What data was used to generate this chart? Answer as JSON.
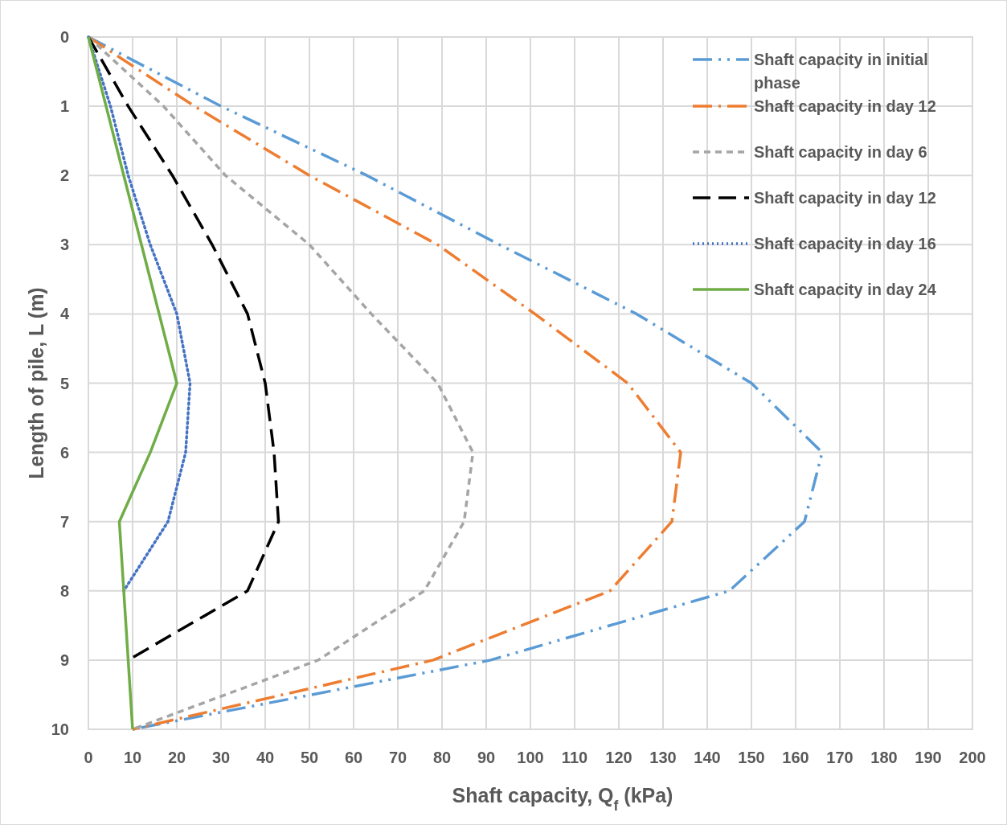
{
  "chart_data": {
    "type": "line",
    "xlabel": "Shaft capacity, Q$_{f}$ (kPa)",
    "ylabel": "Length of pile, L (m)",
    "xlim": [
      0,
      200
    ],
    "xticks": [
      0,
      10,
      20,
      30,
      40,
      50,
      60,
      70,
      80,
      90,
      100,
      110,
      120,
      130,
      140,
      150,
      160,
      170,
      180,
      190,
      200
    ],
    "ylim": [
      10,
      0
    ],
    "yticks": [
      0,
      1,
      2,
      3,
      4,
      5,
      6,
      7,
      8,
      9,
      10
    ],
    "grid": true,
    "legend": "top right",
    "marker": "none",
    "series": [
      {
        "name": "Shaft capacity in initial phase",
        "color": "#5b9bd5",
        "line_style": "dashed",
        "x": [
          0,
          30,
          63,
          93,
          124,
          150,
          166,
          162,
          145,
          91,
          10
        ],
        "values": [
          0,
          1,
          2,
          3,
          4,
          5,
          6,
          7,
          8,
          9,
          10
        ]
      },
      {
        "name": "Shaft capacity in day 12",
        "color": "#ed7d31",
        "line_style": "dashed",
        "x": [
          0,
          24,
          50,
          79,
          101,
          122,
          134,
          132,
          118,
          78,
          10
        ],
        "values": [
          0,
          1,
          2,
          3,
          4,
          5,
          6,
          7,
          8,
          9,
          10
        ]
      },
      {
        "name": "Shaft capacity in day 6",
        "color": "#a5a5a5",
        "line_style": "dashed",
        "x": [
          0,
          17,
          31,
          50,
          64,
          79,
          87,
          85,
          76,
          52,
          10
        ],
        "values": [
          0,
          1,
          2,
          3,
          4,
          5,
          6,
          7,
          8,
          9,
          10
        ]
      },
      {
        "name": "Shaft capacity in day 12",
        "color": "#000000",
        "line_style": "dashed",
        "x": [
          0,
          9,
          19,
          28,
          36,
          40,
          42,
          43,
          36,
          9
        ],
        "values": [
          0,
          1,
          2,
          3,
          4,
          5,
          6,
          7,
          8,
          9
        ]
      },
      {
        "name": "Shaft capacity in day 16",
        "color": "#4472c4",
        "line_style": "dotted",
        "x": [
          0,
          5,
          9,
          14,
          20,
          23,
          22,
          18,
          8
        ],
        "values": [
          0,
          1,
          2,
          3,
          4,
          5,
          6,
          7,
          8
        ]
      },
      {
        "name": "Shaft capacity in day 24",
        "color": "#70ad47",
        "line_style": "solid",
        "x": [
          0,
          4,
          8,
          12,
          16,
          20,
          14,
          7,
          8,
          9,
          10
        ],
        "values": [
          0,
          1,
          2,
          3,
          4,
          5,
          6,
          7,
          8,
          9,
          10
        ]
      }
    ]
  }
}
